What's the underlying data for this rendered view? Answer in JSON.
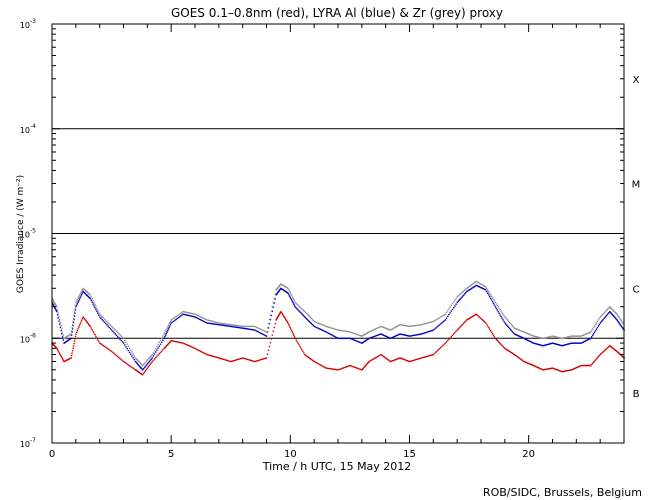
{
  "chart_data": {
    "type": "line",
    "title": "GOES 0.1–0.8nm (red), LYRA Al (blue) & Zr (grey) proxy",
    "xlabel": "Time / h UTC, 15 May 2012",
    "ylabel": "GOES Irradiance / (W m⁻²)",
    "xlim": [
      0,
      24
    ],
    "ylim": [
      1e-07,
      0.001
    ],
    "yscale": "log",
    "x_ticks": [
      0,
      5,
      10,
      15,
      20
    ],
    "y_ticks": [
      {
        "value": 1e-07,
        "mantissa": "10",
        "exp": "-7"
      },
      {
        "value": 1e-06,
        "mantissa": "10",
        "exp": "-6"
      },
      {
        "value": 1e-05,
        "mantissa": "10",
        "exp": "-5"
      },
      {
        "value": 0.0001,
        "mantissa": "10",
        "exp": "-4"
      },
      {
        "value": 0.001,
        "mantissa": "10",
        "exp": "-3"
      }
    ],
    "flare_classes": [
      {
        "label": "X",
        "value": 0.0003
      },
      {
        "label": "M",
        "value": 3e-05
      },
      {
        "label": "C",
        "value": 3e-06
      },
      {
        "label": "B",
        "value": 3e-07
      }
    ],
    "threshold_lines": [
      0.0001,
      1e-05,
      1e-06
    ],
    "series": [
      {
        "color": "#d00000",
        "x": [
          0,
          0.2,
          0.5,
          0.8,
          1.0,
          1.3,
          1.6,
          2.0,
          2.5,
          3.0,
          3.5,
          3.8,
          4.2,
          4.7,
          5.0,
          5.5,
          6.0,
          6.5,
          7.0,
          7.5,
          8.0,
          8.5,
          9.0,
          9.4,
          9.6,
          9.9,
          10.2,
          10.6,
          11.0,
          11.5,
          12.0,
          12.5,
          13.0,
          13.3,
          13.8,
          14.2,
          14.6,
          15.0,
          15.5,
          16.0,
          16.5,
          17.0,
          17.4,
          17.8,
          18.2,
          18.6,
          19.0,
          19.4,
          19.8,
          20.2,
          20.6,
          21.0,
          21.4,
          21.8,
          22.2,
          22.6,
          23.0,
          23.4,
          23.7,
          24.0
        ],
        "y": [
          9e-07,
          8e-07,
          6e-07,
          6.5e-07,
          1.1e-06,
          1.6e-06,
          1.3e-06,
          9e-07,
          7.5e-07,
          6e-07,
          5e-07,
          4.5e-07,
          6e-07,
          8e-07,
          9.5e-07,
          9e-07,
          8e-07,
          7e-07,
          6.5e-07,
          6e-07,
          6.5e-07,
          6e-07,
          6.5e-07,
          1.5e-06,
          1.8e-06,
          1.4e-06,
          1e-06,
          7e-07,
          6e-07,
          5.2e-07,
          5e-07,
          5.5e-07,
          5e-07,
          6e-07,
          7e-07,
          6e-07,
          6.5e-07,
          6e-07,
          6.5e-07,
          7e-07,
          9e-07,
          1.2e-06,
          1.5e-06,
          1.7e-06,
          1.4e-06,
          1e-06,
          8e-07,
          7e-07,
          6e-07,
          5.5e-07,
          5e-07,
          5.2e-07,
          4.8e-07,
          5e-07,
          5.5e-07,
          5.5e-07,
          7e-07,
          8.5e-07,
          7.5e-07,
          6.5e-07
        ]
      },
      {
        "color": "#0000c0",
        "x": [
          0,
          0.2,
          0.5,
          0.8,
          1.0,
          1.3,
          1.6,
          2.0,
          2.5,
          3.0,
          3.5,
          3.8,
          4.2,
          4.7,
          5.0,
          5.5,
          6.0,
          6.5,
          7.0,
          7.5,
          8.0,
          8.5,
          9.0,
          9.4,
          9.6,
          9.9,
          10.2,
          10.6,
          11.0,
          11.5,
          12.0,
          12.5,
          13.0,
          13.3,
          13.8,
          14.2,
          14.6,
          15.0,
          15.5,
          16.0,
          16.5,
          17.0,
          17.4,
          17.8,
          18.2,
          18.6,
          19.0,
          19.4,
          19.8,
          20.2,
          20.6,
          21.0,
          21.4,
          21.8,
          22.2,
          22.6,
          23.0,
          23.4,
          23.7,
          24.0
        ],
        "y": [
          2.2e-06,
          1.8e-06,
          9e-07,
          1e-06,
          2e-06,
          2.8e-06,
          2.4e-06,
          1.6e-06,
          1.2e-06,
          9e-07,
          6e-07,
          5e-07,
          6.5e-07,
          1e-06,
          1.4e-06,
          1.7e-06,
          1.6e-06,
          1.4e-06,
          1.35e-06,
          1.3e-06,
          1.25e-06,
          1.2e-06,
          1.05e-06,
          2.6e-06,
          3e-06,
          2.7e-06,
          2e-06,
          1.6e-06,
          1.3e-06,
          1.15e-06,
          1e-06,
          1e-06,
          9e-07,
          1e-06,
          1.1e-06,
          1e-06,
          1.1e-06,
          1.05e-06,
          1.1e-06,
          1.2e-06,
          1.5e-06,
          2.2e-06,
          2.8e-06,
          3.2e-06,
          2.9e-06,
          2e-06,
          1.4e-06,
          1.1e-06,
          1e-06,
          9e-07,
          8.5e-07,
          9e-07,
          8.5e-07,
          9e-07,
          9e-07,
          1e-06,
          1.4e-06,
          1.8e-06,
          1.5e-06,
          1.2e-06
        ]
      },
      {
        "color": "#909090",
        "x": [
          0,
          0.2,
          0.5,
          0.8,
          1.0,
          1.3,
          1.6,
          2.0,
          2.5,
          3.0,
          3.5,
          3.8,
          4.2,
          4.7,
          5.0,
          5.5,
          6.0,
          6.5,
          7.0,
          7.5,
          8.0,
          8.5,
          9.0,
          9.4,
          9.6,
          9.9,
          10.2,
          10.6,
          11.0,
          11.5,
          12.0,
          12.5,
          13.0,
          13.3,
          13.8,
          14.2,
          14.6,
          15.0,
          15.5,
          16.0,
          16.5,
          17.0,
          17.4,
          17.8,
          18.2,
          18.6,
          19.0,
          19.4,
          19.8,
          20.2,
          20.6,
          21.0,
          21.4,
          21.8,
          22.2,
          22.6,
          23.0,
          23.4,
          23.7,
          24.0
        ],
        "y": [
          2.4e-06,
          2e-06,
          1e-06,
          1.1e-06,
          2.2e-06,
          3e-06,
          2.6e-06,
          1.7e-06,
          1.3e-06,
          1e-06,
          6.5e-07,
          5.5e-07,
          7e-07,
          1.1e-06,
          1.5e-06,
          1.8e-06,
          1.7e-06,
          1.5e-06,
          1.4e-06,
          1.35e-06,
          1.3e-06,
          1.3e-06,
          1.15e-06,
          2.9e-06,
          3.3e-06,
          3e-06,
          2.2e-06,
          1.8e-06,
          1.45e-06,
          1.3e-06,
          1.2e-06,
          1.15e-06,
          1.05e-06,
          1.15e-06,
          1.3e-06,
          1.2e-06,
          1.35e-06,
          1.3e-06,
          1.35e-06,
          1.45e-06,
          1.7e-06,
          2.5e-06,
          3e-06,
          3.5e-06,
          3.1e-06,
          2.2e-06,
          1.6e-06,
          1.25e-06,
          1.15e-06,
          1.05e-06,
          1e-06,
          1.05e-06,
          1e-06,
          1.05e-06,
          1.05e-06,
          1.15e-06,
          1.6e-06,
          2e-06,
          1.7e-06,
          1.35e-06
        ]
      }
    ],
    "annotation": "ROB/SIDC, Brussels, Belgium"
  }
}
